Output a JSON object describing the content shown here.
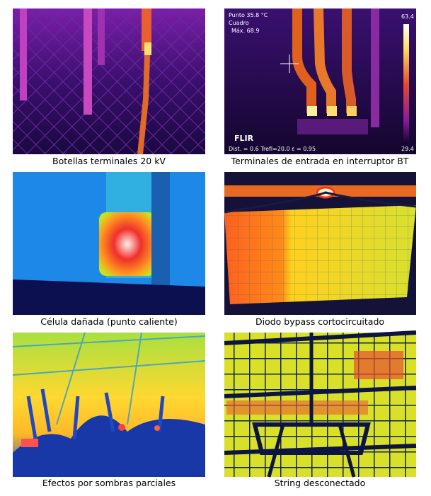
{
  "panels": [
    {
      "caption": "Botellas terminales 20 kV"
    },
    {
      "caption": "Terminales de entrada en interruptor BT",
      "overlay": {
        "point_label": "Punto",
        "point_value": "35.8",
        "unit": "°C",
        "box_label": "Cuadro",
        "max_label": "Máx.",
        "max_value": "68.9",
        "scale_max": "63.4",
        "scale_min": "29.4",
        "brand": "FLIR",
        "footer": "Dist. = 0.6  Trefl=20.0  ε = 0.95"
      }
    },
    {
      "caption": "Célula dañada (punto caliente)"
    },
    {
      "caption": "Diodo bypass cortocircuitado"
    },
    {
      "caption": "Efectos por sombras parciales"
    },
    {
      "caption": "String desconectado"
    }
  ]
}
